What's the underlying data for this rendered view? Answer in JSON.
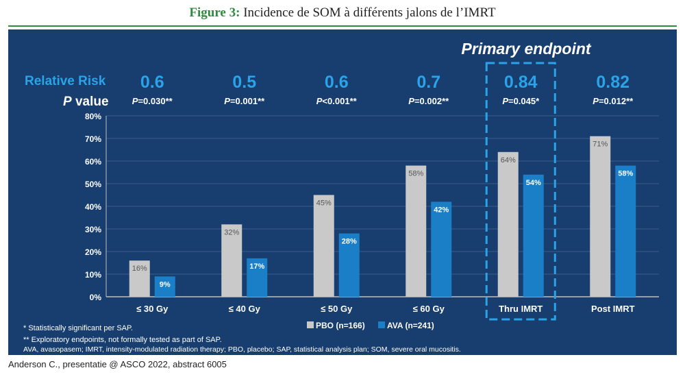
{
  "figure": {
    "label": "Figure 3:",
    "title": "Incidence de SOM à différents jalons de l’IMRT"
  },
  "credit": "Anderson C., presentatie @ ASCO 2022, abstract 6005",
  "chart_data": {
    "type": "bar",
    "primary_endpoint_label": "Primary endpoint",
    "primary_endpoint_category": "Thru IMRT",
    "relative_risk_label": "Relative Risk",
    "p_value_label_italic": "P",
    "p_value_label_rest": " value",
    "categories": [
      "≤ 30 Gy",
      "≤ 40 Gy",
      "≤ 50 Gy",
      "≤ 60 Gy",
      "Thru IMRT",
      "Post IMRT"
    ],
    "relative_risk": [
      "0.6",
      "0.5",
      "0.6",
      "0.7",
      "0.84",
      "0.82"
    ],
    "p_values": [
      {
        "p": "P",
        "rest": "=0.030**"
      },
      {
        "p": "P",
        "rest": "=0.001**"
      },
      {
        "p": "P",
        "rest": "<0.001**"
      },
      {
        "p": "P",
        "rest": "=0.002**"
      },
      {
        "p": "P",
        "rest": "=0.045*"
      },
      {
        "p": "P",
        "rest": "=0.012**"
      }
    ],
    "series": [
      {
        "name": "PBO (n=166)",
        "color": "#c9c9c9",
        "label_color": "#555555",
        "values": [
          16,
          32,
          45,
          58,
          64,
          71
        ],
        "labels": [
          "16%",
          "32%",
          "45%",
          "58%",
          "64%",
          "71%"
        ]
      },
      {
        "name": "AVA (n=241)",
        "color": "#1b7fc7",
        "label_color": "#ffffff",
        "values": [
          9,
          17,
          28,
          42,
          54,
          58
        ],
        "labels": [
          "9%",
          "17%",
          "28%",
          "42%",
          "54%",
          "58%"
        ]
      }
    ],
    "ylim": [
      0,
      80
    ],
    "yticks": [
      0,
      10,
      20,
      30,
      40,
      50,
      60,
      70,
      80
    ],
    "ytick_labels": [
      "0%",
      "10%",
      "20%",
      "30%",
      "40%",
      "50%",
      "60%",
      "70%",
      "80%"
    ],
    "grid": true,
    "legend": "bottom-center",
    "footnotes": [
      "* Statistically significant per SAP.",
      "** Exploratory endpoints, not formally tested as part of SAP.",
      "AVA, avasopasem; IMRT, intensity-modulated radiation therapy; PBO, placebo; SAP, statistical analysis plan; SOM, severe oral mucositis."
    ],
    "colors": {
      "panel": "#173e6e",
      "accent": "#2aa3e8",
      "grid": "#3b5f8e",
      "text": "#ffffff"
    }
  }
}
